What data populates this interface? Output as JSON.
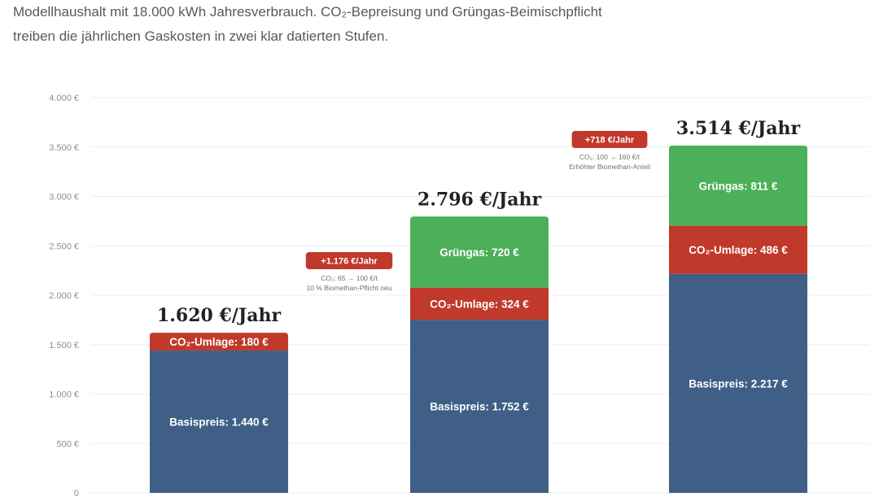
{
  "subtitle_lines": [
    "Modellhaushalt mit 18.000 kWh Jahresverbrauch. CO₂-Bepreisung und Grüngas-Beimischpflicht",
    "treiben die jährlichen Gaskosten in zwei klar datierten Stufen."
  ],
  "chart_data": {
    "type": "bar",
    "stacked": true,
    "ylim": [
      0,
      4000
    ],
    "yticks": [
      0,
      500,
      1000,
      1500,
      2000,
      2500,
      3000,
      3500,
      4000
    ],
    "ytick_labels": [
      "0",
      "500 €",
      "1.000 €",
      "1.500 €",
      "2.000 €",
      "2.500 €",
      "3.000 €",
      "3.500 €",
      "4.000 €"
    ],
    "grid": true,
    "colors": {
      "basis": "#3f5f86",
      "co2": "#c0392b",
      "gruen": "#4caf5a",
      "badge": "#c0392b"
    },
    "bars": [
      {
        "total_label": "1.620 €/Jahr",
        "segments": [
          {
            "key": "basis",
            "value": 1440,
            "label": "Basispreis: 1.440 €"
          },
          {
            "key": "co2",
            "value": 180,
            "label": "CO₂-Umlage: 180 €"
          }
        ]
      },
      {
        "total_label": "2.796 €/Jahr",
        "segments": [
          {
            "key": "basis",
            "value": 1752,
            "label": "Basispreis: 1.752 €"
          },
          {
            "key": "co2",
            "value": 324,
            "label": "CO₂-Umlage: 324 €"
          },
          {
            "key": "gruen",
            "value": 720,
            "label": "Grüngas: 720 €"
          }
        ]
      },
      {
        "total_label": "3.514 €/Jahr",
        "segments": [
          {
            "key": "basis",
            "value": 2217,
            "label": "Basispreis: 2.217 €"
          },
          {
            "key": "co2",
            "value": 486,
            "label": "CO₂-Umlage: 486 €"
          },
          {
            "key": "gruen",
            "value": 811,
            "label": "Grüngas: 811 €"
          }
        ]
      }
    ],
    "annotations": [
      {
        "between": [
          0,
          1
        ],
        "badge": "+1.176 €/Jahr",
        "notes": [
          "CO₂: 65 → 100 €/t",
          "10 % Biomethan-Pflicht neu"
        ]
      },
      {
        "between": [
          1,
          2
        ],
        "badge": "+718 €/Jahr",
        "notes": [
          "CO₂: 100 → 160 €/t",
          "Erhöhter Biomethan-Anteil"
        ]
      }
    ]
  }
}
